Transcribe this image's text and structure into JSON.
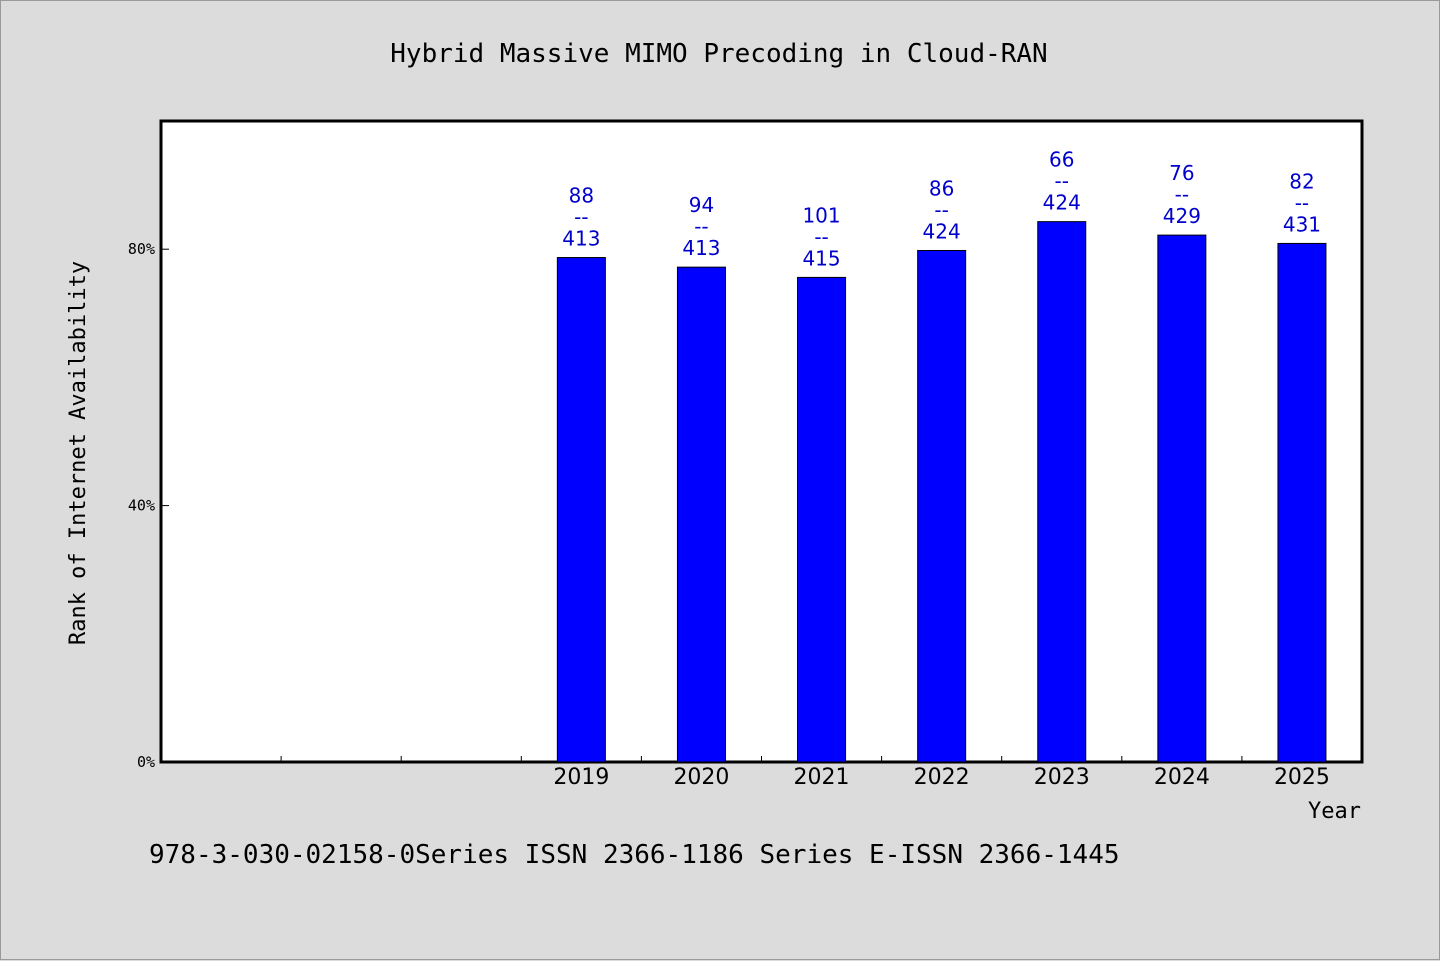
{
  "chart_data": {
    "type": "bar",
    "title": "Hybrid Massive MIMO Precoding in Cloud-RAN",
    "xlabel": "Year",
    "ylabel": "Rank of Internet Availability",
    "categories": [
      "",
      "",
      "",
      "2019",
      "2020",
      "2021",
      "2022",
      "2023",
      "2024",
      "2025"
    ],
    "values": [
      null,
      null,
      null,
      78.7,
      77.2,
      75.6,
      79.8,
      84.3,
      82.2,
      80.9
    ],
    "data_labels": [
      null,
      null,
      null,
      [
        "88",
        "--",
        "413"
      ],
      [
        "94",
        "--",
        "413"
      ],
      [
        "101",
        "--",
        "415"
      ],
      [
        "86",
        "--",
        "424"
      ],
      [
        "66",
        "--",
        "424"
      ],
      [
        "76",
        "--",
        "429"
      ],
      [
        "82",
        "--",
        "431"
      ]
    ],
    "yticks": [
      {
        "value": 0,
        "label": "0%"
      },
      {
        "value": 40,
        "label": "40%"
      },
      {
        "value": 80,
        "label": "80%"
      }
    ],
    "ylim": [
      0,
      100
    ],
    "grid": false,
    "legend": "none",
    "bar_color": "#0000ff",
    "label_color": "#0000cc"
  },
  "footer": {
    "text": "978-3-030-02158-0Series ISSN 2366-1186 Series E-ISSN 2366-1445"
  }
}
